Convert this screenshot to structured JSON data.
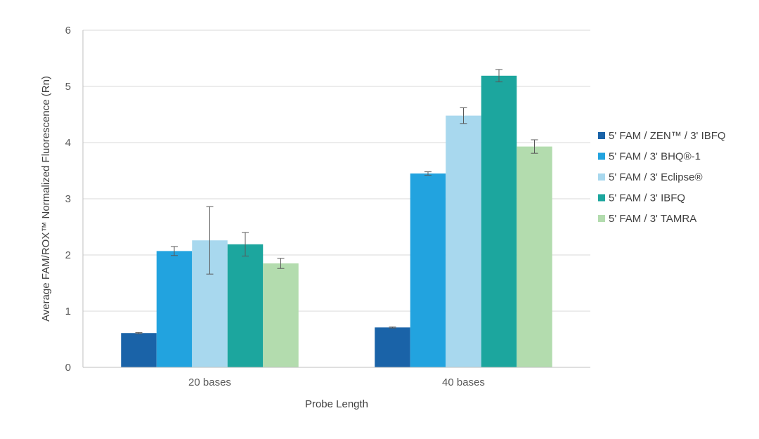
{
  "chart_data": {
    "type": "bar",
    "title": "",
    "xlabel": "Probe Length",
    "ylabel": "Average FAM/ROX™ Normalized Fluorescence (Rn)",
    "categories": [
      "20 bases",
      "40 bases"
    ],
    "ylim": [
      0,
      6
    ],
    "yticks": [
      0,
      1,
      2,
      3,
      4,
      5,
      6
    ],
    "grid": "horizontal",
    "legend_position": "right",
    "series": [
      {
        "name": "5' FAM / ZEN™ / 3' IBFQ",
        "color": "#1a63a8",
        "values": [
          0.61,
          0.71
        ],
        "errors": [
          0.01,
          0.01
        ]
      },
      {
        "name": "5' FAM / 3' BHQ®-1",
        "color": "#22a3df",
        "values": [
          2.07,
          3.45
        ],
        "errors": [
          0.08,
          0.03
        ]
      },
      {
        "name": "5' FAM / 3' Eclipse®",
        "color": "#a8d8ee",
        "values": [
          2.26,
          4.48
        ],
        "errors": [
          0.6,
          0.14
        ]
      },
      {
        "name": "5' FAM / 3' IBFQ",
        "color": "#1ca69e",
        "values": [
          2.19,
          5.19
        ],
        "errors": [
          0.21,
          0.11
        ]
      },
      {
        "name": "5' FAM / 3' TAMRA",
        "color": "#b3dcae",
        "values": [
          1.85,
          3.93
        ],
        "errors": [
          0.09,
          0.12
        ]
      }
    ]
  }
}
